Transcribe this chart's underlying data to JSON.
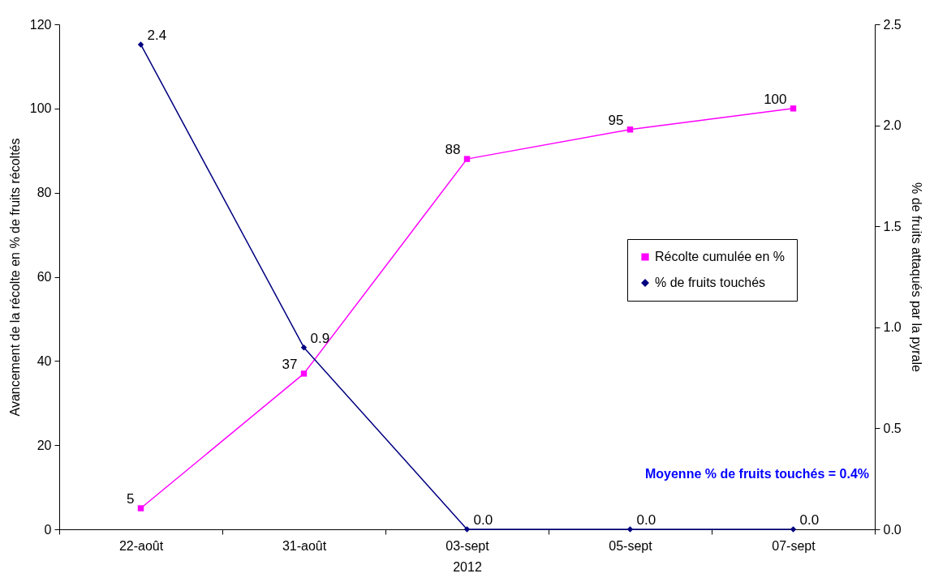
{
  "chart_data": {
    "type": "line",
    "categories": [
      "22-août",
      "31-août",
      "03-sept",
      "05-sept",
      "07-sept"
    ],
    "xlabel": "2012",
    "ylabel": "Avancement de la récolte en % de fruits récoltés",
    "y2label": "% de fruits attaqués par la pyrale",
    "series": [
      {
        "name": "Récolte cumulée en %",
        "color": "#ff00ff",
        "marker": "square",
        "values": [
          5,
          37,
          88,
          95,
          100
        ],
        "value_labels": [
          "5",
          "37",
          "88",
          "95",
          "100"
        ]
      },
      {
        "name": "% de fruits touchés",
        "color": "#000080",
        "marker": "diamond",
        "axis": "y2",
        "values": [
          2.4,
          0.9,
          0.0,
          0.0,
          0.0
        ],
        "value_labels": [
          "2.4",
          "0.9",
          "0.0",
          "0.0",
          "0.0"
        ]
      }
    ],
    "ylim": [
      0,
      120
    ],
    "yticks": [
      0,
      20,
      40,
      60,
      80,
      100,
      120
    ],
    "y2lim": [
      0,
      2.5
    ],
    "y2ticks": [
      {
        "value": 0,
        "label": "0.0"
      },
      {
        "value": 0.5,
        "label": "0.5"
      },
      {
        "value": 1,
        "label": "1.0"
      },
      {
        "value": 1.5,
        "label": "1.5"
      },
      {
        "value": 2,
        "label": "2.0"
      },
      {
        "value": 2.5,
        "label": "2.5"
      }
    ],
    "legend": "right",
    "grid": false,
    "annotations": [
      "Moyenne % de fruits touchés = 0.4%"
    ]
  }
}
